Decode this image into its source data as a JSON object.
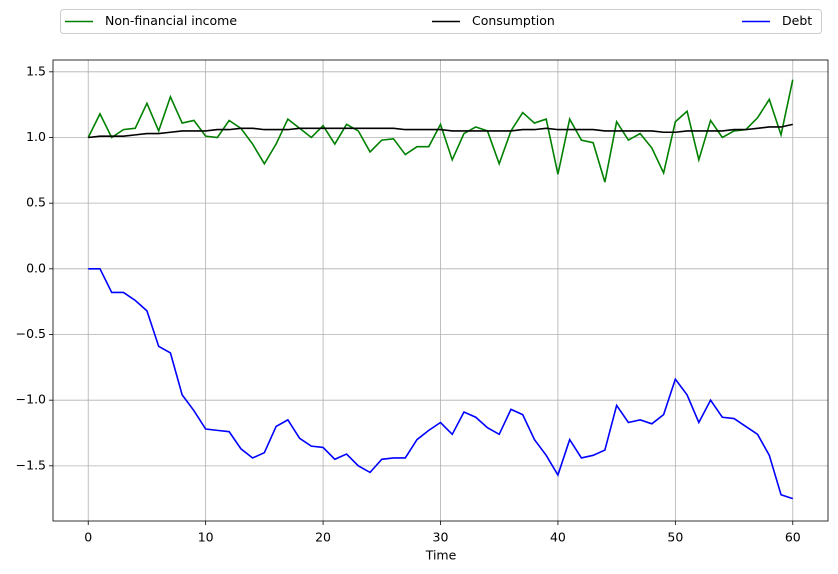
{
  "chart_data": {
    "type": "line",
    "xlabel": "Time",
    "x": [
      0,
      1,
      2,
      3,
      4,
      5,
      6,
      7,
      8,
      9,
      10,
      11,
      12,
      13,
      14,
      15,
      16,
      17,
      18,
      19,
      20,
      21,
      22,
      23,
      24,
      25,
      26,
      27,
      28,
      29,
      30,
      31,
      32,
      33,
      34,
      35,
      36,
      37,
      38,
      39,
      40,
      41,
      42,
      43,
      44,
      45,
      46,
      47,
      48,
      49,
      50,
      51,
      52,
      53,
      54,
      55,
      56,
      57,
      58,
      59,
      60
    ],
    "series": [
      {
        "name": "Non-financial income",
        "color": "#008000",
        "values": [
          1.0,
          1.18,
          1.0,
          1.06,
          1.07,
          1.26,
          1.05,
          1.31,
          1.11,
          1.13,
          1.01,
          1.0,
          1.13,
          1.07,
          0.95,
          0.8,
          0.95,
          1.14,
          1.07,
          1.0,
          1.09,
          0.95,
          1.1,
          1.05,
          0.89,
          0.98,
          0.99,
          0.87,
          0.93,
          0.93,
          1.1,
          0.83,
          1.03,
          1.08,
          1.05,
          0.8,
          1.05,
          1.19,
          1.11,
          1.14,
          0.72,
          1.14,
          0.98,
          0.96,
          0.66,
          1.12,
          0.98,
          1.03,
          0.92,
          0.73,
          1.12,
          1.2,
          0.83,
          1.13,
          1.0,
          1.05,
          1.06,
          1.15,
          1.29,
          1.02,
          1.44
        ]
      },
      {
        "name": "Consumption",
        "color": "#000000",
        "values": [
          1.0,
          1.01,
          1.01,
          1.01,
          1.02,
          1.03,
          1.03,
          1.04,
          1.05,
          1.05,
          1.05,
          1.06,
          1.06,
          1.07,
          1.07,
          1.06,
          1.06,
          1.06,
          1.07,
          1.07,
          1.07,
          1.07,
          1.07,
          1.07,
          1.07,
          1.07,
          1.07,
          1.06,
          1.06,
          1.06,
          1.06,
          1.05,
          1.05,
          1.05,
          1.05,
          1.05,
          1.05,
          1.06,
          1.06,
          1.07,
          1.06,
          1.06,
          1.06,
          1.06,
          1.05,
          1.05,
          1.05,
          1.05,
          1.05,
          1.04,
          1.04,
          1.05,
          1.05,
          1.05,
          1.05,
          1.06,
          1.06,
          1.07,
          1.08,
          1.08,
          1.1
        ]
      },
      {
        "name": "Debt",
        "color": "#0000ff",
        "values": [
          0,
          0,
          -0.18,
          -0.18,
          -0.24,
          -0.32,
          -0.59,
          -0.64,
          -0.96,
          -1.08,
          -1.22,
          -1.23,
          -1.24,
          -1.37,
          -1.44,
          -1.4,
          -1.2,
          -1.15,
          -1.29,
          -1.35,
          -1.36,
          -1.45,
          -1.41,
          -1.5,
          -1.55,
          -1.45,
          -1.44,
          -1.44,
          -1.3,
          -1.23,
          -1.17,
          -1.26,
          -1.09,
          -1.13,
          -1.21,
          -1.26,
          -1.07,
          -1.11,
          -1.3,
          -1.42,
          -1.57,
          -1.3,
          -1.44,
          -1.42,
          -1.38,
          -1.04,
          -1.17,
          -1.15,
          -1.18,
          -1.11,
          -0.84,
          -0.96,
          -1.17,
          -1.0,
          -1.13,
          -1.14,
          -1.2,
          -1.26,
          -1.42,
          -1.72,
          -1.75
        ]
      }
    ],
    "xlim": [
      -3,
      63
    ],
    "ylim": [
      -1.92,
      1.59
    ],
    "xticks": [
      0,
      10,
      20,
      30,
      40,
      50,
      60
    ],
    "yticks": [
      {
        "value": -1.5,
        "label": "−1.5"
      },
      {
        "value": -1.0,
        "label": "−1.0"
      },
      {
        "value": -0.5,
        "label": "−0.5"
      },
      {
        "value": 0,
        "label": "0.0"
      },
      0.5,
      {
        "value": 1.0,
        "label": "1.0"
      },
      1.5
    ],
    "grid": true,
    "legend": "top"
  }
}
